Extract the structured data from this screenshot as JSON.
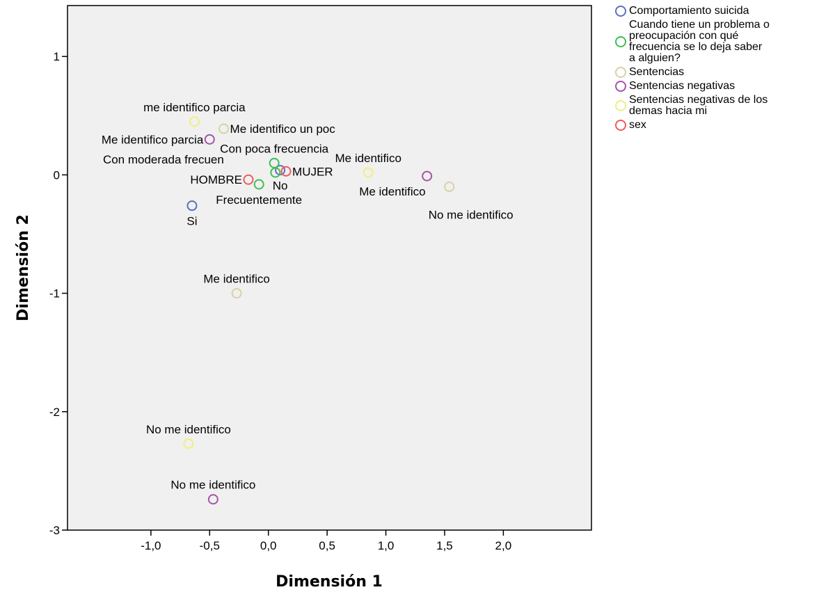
{
  "chart_data": {
    "type": "scatter",
    "xlabel": "Dimensión 1",
    "ylabel": "Dimensión 2",
    "xlim": [
      -1.71,
      2.75
    ],
    "ylim": [
      -3.0,
      1.43
    ],
    "x_ticks": [
      {
        "value": -1.0,
        "label": "-1,0"
      },
      {
        "value": -0.5,
        "label": "-0,5"
      },
      {
        "value": 0.0,
        "label": "0,0"
      },
      {
        "value": 0.5,
        "label": "0,5"
      },
      {
        "value": 1.0,
        "label": "1,0"
      },
      {
        "value": 1.5,
        "label": "1,5"
      },
      {
        "value": 2.0,
        "label": "2,0"
      }
    ],
    "y_ticks": [
      {
        "value": 1,
        "label": "1"
      },
      {
        "value": 0,
        "label": "0"
      },
      {
        "value": -1,
        "label": "-1"
      },
      {
        "value": -2,
        "label": "-2"
      },
      {
        "value": -3,
        "label": "-3"
      }
    ],
    "grid": false,
    "legend_position": "right",
    "plot_background": "#f0f0f0",
    "series": [
      {
        "name": "Comportamiento suicida",
        "color": "#5b6fc0",
        "points": [
          {
            "x": -0.65,
            "y": -0.26,
            "label": "Si",
            "label_pos": "below"
          },
          {
            "x": 0.1,
            "y": 0.04,
            "label": "No",
            "label_pos": "below"
          }
        ]
      },
      {
        "name": "Cuando tiene un problema o\npreocupación con  qué\nfrecuencia se lo deja saber\na alguien?",
        "color": "#3cbf52",
        "points": [
          {
            "x": 0.05,
            "y": 0.1,
            "label": "Con poca frecuencia",
            "label_pos": "above"
          },
          {
            "x": -0.08,
            "y": -0.08,
            "label": "Frecuentemente",
            "label_pos": "below"
          },
          {
            "x": 0.06,
            "y": 0.02,
            "label": "Con moderada frecuen",
            "label_pos": "above-left"
          }
        ]
      },
      {
        "name": "Sentencias",
        "color": "#d8d2a4",
        "points": [
          {
            "x": -0.38,
            "y": 0.39,
            "label": "Me identifico un poc",
            "label_pos": "right"
          },
          {
            "x": -0.27,
            "y": -1.0,
            "label": "Me identifico",
            "label_pos": "above"
          },
          {
            "x": 1.54,
            "y": -0.1,
            "label": "No me identifico",
            "label_pos": "below-right"
          }
        ]
      },
      {
        "name": "Sentencias negativas",
        "color": "#a654a8",
        "points": [
          {
            "x": -0.5,
            "y": 0.3,
            "label": "Me identifico parcia",
            "label_pos": "left"
          },
          {
            "x": 1.35,
            "y": -0.01,
            "label": "Me identifico",
            "label_pos": "below-left"
          },
          {
            "x": -0.47,
            "y": -2.74,
            "label": "No me identifico",
            "label_pos": "above"
          }
        ]
      },
      {
        "name": "Sentencias negativas de los\ndemas hacia mi",
        "color": "#f2ee7e",
        "points": [
          {
            "x": -0.63,
            "y": 0.45,
            "label": "me identifico parcia",
            "label_pos": "above"
          },
          {
            "x": 0.85,
            "y": 0.02,
            "label": "Me identifico",
            "label_pos": "above"
          },
          {
            "x": -0.68,
            "y": -2.27,
            "label": "No me identifico",
            "label_pos": "above"
          }
        ]
      },
      {
        "name": "sex",
        "color": "#f05a5a",
        "points": [
          {
            "x": -0.17,
            "y": -0.04,
            "label": "HOMBRE",
            "label_pos": "left"
          },
          {
            "x": 0.15,
            "y": 0.03,
            "label": "MUJER",
            "label_pos": "right"
          }
        ]
      }
    ]
  }
}
